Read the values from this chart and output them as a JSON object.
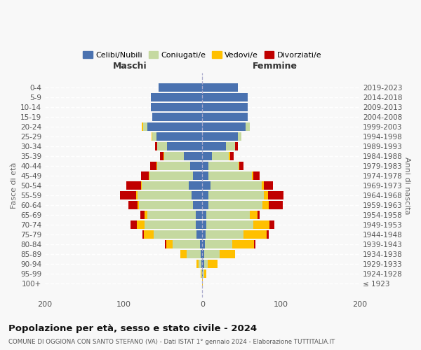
{
  "age_groups": [
    "0-4",
    "5-9",
    "10-14",
    "15-19",
    "20-24",
    "25-29",
    "30-34",
    "35-39",
    "40-44",
    "45-49",
    "50-54",
    "55-59",
    "60-64",
    "65-69",
    "70-74",
    "75-79",
    "80-84",
    "85-89",
    "90-94",
    "95-99",
    "100+"
  ],
  "birth_years": [
    "2019-2023",
    "2014-2018",
    "2009-2013",
    "2004-2008",
    "1999-2003",
    "1994-1998",
    "1989-1993",
    "1984-1988",
    "1979-1983",
    "1974-1978",
    "1969-1973",
    "1964-1968",
    "1959-1963",
    "1954-1958",
    "1949-1953",
    "1944-1948",
    "1939-1943",
    "1934-1938",
    "1929-1933",
    "1924-1928",
    "≤ 1923"
  ],
  "males": {
    "celibe": [
      55,
      65,
      65,
      63,
      70,
      58,
      45,
      23,
      15,
      12,
      17,
      14,
      12,
      8,
      8,
      7,
      3,
      2,
      1,
      0,
      0
    ],
    "coniugato": [
      0,
      0,
      0,
      0,
      5,
      5,
      12,
      25,
      42,
      55,
      60,
      68,
      68,
      62,
      65,
      55,
      35,
      18,
      4,
      1,
      0
    ],
    "vedovo": [
      0,
      0,
      0,
      0,
      2,
      1,
      0,
      1,
      1,
      1,
      1,
      2,
      2,
      3,
      10,
      12,
      8,
      8,
      2,
      1,
      0
    ],
    "divorziato": [
      0,
      0,
      0,
      0,
      0,
      0,
      3,
      5,
      8,
      10,
      18,
      20,
      12,
      6,
      8,
      2,
      1,
      0,
      0,
      0,
      0
    ]
  },
  "females": {
    "nubile": [
      45,
      58,
      58,
      58,
      55,
      45,
      30,
      12,
      8,
      8,
      10,
      8,
      8,
      5,
      5,
      4,
      3,
      2,
      2,
      1,
      0
    ],
    "coniugata": [
      0,
      0,
      0,
      0,
      5,
      5,
      12,
      22,
      38,
      55,
      65,
      70,
      68,
      55,
      60,
      48,
      35,
      20,
      5,
      1,
      0
    ],
    "vedova": [
      0,
      0,
      0,
      0,
      0,
      0,
      0,
      1,
      1,
      2,
      3,
      5,
      8,
      10,
      20,
      30,
      28,
      20,
      12,
      3,
      1
    ],
    "divorziata": [
      0,
      0,
      0,
      0,
      0,
      0,
      3,
      5,
      5,
      8,
      12,
      20,
      18,
      3,
      6,
      2,
      1,
      0,
      0,
      0,
      0
    ]
  },
  "color_celibe": "#4a72b0",
  "color_coniugato": "#c5d9a0",
  "color_vedovo": "#ffc000",
  "color_divorziato": "#c00000",
  "bg_color": "#f8f8f8",
  "grid_color": "#ffffff",
  "title": "Popolazione per età, sesso e stato civile - 2024",
  "subtitle": "COMUNE DI OGGIONA CON SANTO STEFANO (VA) - Dati ISTAT 1° gennaio 2024 - Elaborazione TUTTITALIA.IT",
  "xlabel_left": "Maschi",
  "xlabel_right": "Femmine",
  "ylabel_left": "Fasce di età",
  "ylabel_right": "Anni di nascita",
  "xlim": 200,
  "legend_labels": [
    "Celibi/Nubili",
    "Coniugati/e",
    "Vedovi/e",
    "Divorziati/e"
  ]
}
